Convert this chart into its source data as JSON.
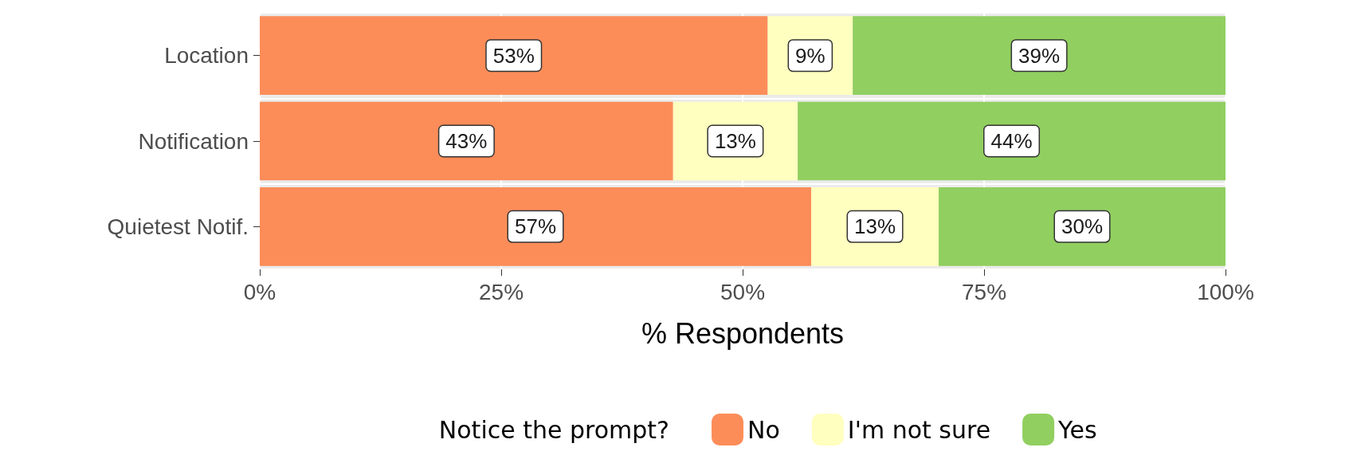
{
  "chart_data": {
    "type": "bar",
    "orientation": "horizontal",
    "stacked": true,
    "categories": [
      "Location",
      "Notification",
      "Quietest Notif."
    ],
    "series": [
      {
        "name": "No",
        "color": "#fc8d59",
        "values": [
          52.6,
          42.8,
          57.1
        ],
        "value_labels": [
          "53%",
          "43%",
          "57%"
        ]
      },
      {
        "name": "I'm not sure",
        "color": "#ffffbf",
        "values": [
          8.8,
          12.9,
          13.2
        ],
        "value_labels": [
          "9%",
          "13%",
          "13%"
        ]
      },
      {
        "name": "Yes",
        "color": "#91cf60",
        "values": [
          38.6,
          44.3,
          29.7
        ],
        "value_labels": [
          "39%",
          "44%",
          "30%"
        ]
      }
    ],
    "xlim": [
      0,
      100
    ],
    "xticks": [
      {
        "value": 0,
        "label": "0%"
      },
      {
        "value": 25,
        "label": "25%"
      },
      {
        "value": 50,
        "label": "50%"
      },
      {
        "value": 75,
        "label": "75%"
      },
      {
        "value": 100,
        "label": "100%"
      }
    ],
    "xlabel": "% Respondents",
    "legend_title": "Notice the prompt?",
    "legend": "bottom",
    "grid": true
  }
}
